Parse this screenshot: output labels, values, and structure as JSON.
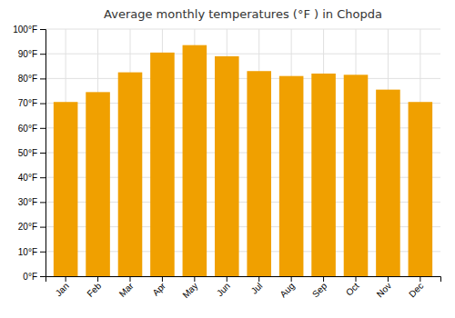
{
  "chart_data": {
    "type": "bar",
    "title": "Average monthly temperatures (°F ) in Chopda",
    "categories": [
      "Jan",
      "Feb",
      "Mar",
      "Apr",
      "May",
      "Jun",
      "Jul",
      "Aug",
      "Sep",
      "Oct",
      "Nov",
      "Dec"
    ],
    "values": [
      70.5,
      74.5,
      82.5,
      90.5,
      93.5,
      89.0,
      83.0,
      81.0,
      82.0,
      81.5,
      75.5,
      70.5
    ],
    "color": "#F0A000",
    "ylim": [
      0,
      100
    ],
    "yticks": [
      {
        "value": 0,
        "label": "0°F"
      },
      {
        "value": 10,
        "label": "10°F"
      },
      {
        "value": 20,
        "label": "20°F"
      },
      {
        "value": 30,
        "label": "30°F"
      },
      {
        "value": 40,
        "label": "40°F"
      },
      {
        "value": 50,
        "label": "50°F"
      },
      {
        "value": 60,
        "label": "60°F"
      },
      {
        "value": 70,
        "label": "70°F"
      },
      {
        "value": 80,
        "label": "80°F"
      },
      {
        "value": 90,
        "label": "90°F"
      },
      {
        "value": 100,
        "label": "100°F"
      }
    ],
    "grid": true
  }
}
